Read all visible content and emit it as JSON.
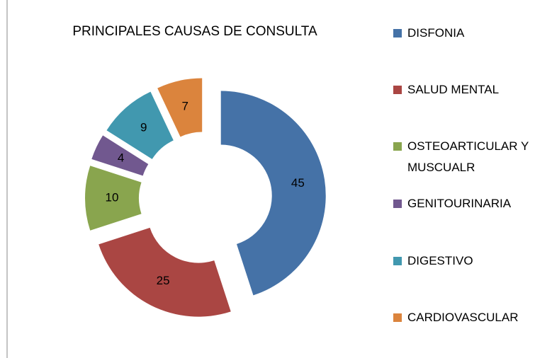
{
  "chart_data": {
    "type": "donut",
    "title": "PRINCIPALES CAUSAS DE CONSULTA",
    "categories": [
      "DISFONIA",
      "SALUD MENTAL",
      "OSTEOARTICULAR Y MUSCUALR",
      "GENITOURINARIA",
      "DIGESTIVO",
      "CARDIOVASCULAR"
    ],
    "values": [
      45,
      25,
      10,
      4,
      9,
      7
    ],
    "colors": [
      "#4572a7",
      "#aa4643",
      "#89a54e",
      "#71588f",
      "#4198af",
      "#db843d"
    ],
    "exploded": true,
    "legend": "right"
  }
}
